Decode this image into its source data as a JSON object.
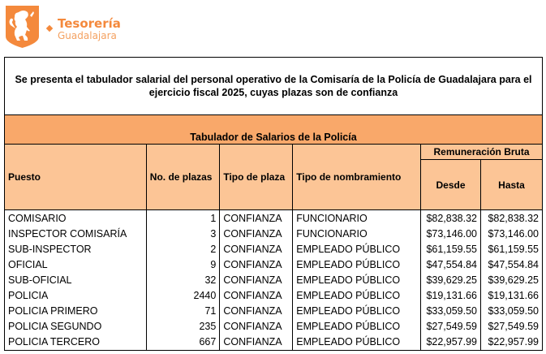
{
  "header": {
    "brand_line1": "Tesorería",
    "brand_line2": "Guadalajara",
    "brand_color": "#f4893c"
  },
  "document": {
    "intro": "Se presenta el tabulador salarial del personal operativo de la Comisaría de la Policía de Guadalajara para el ejercicio fiscal 2025, cuyas plazas son de confianza",
    "table_title": "Tabulador de Salarios de la Policía",
    "columns": {
      "puesto": "Puesto",
      "plazas": "No. de plazas",
      "tipo_plaza": "Tipo de plaza",
      "nombramiento": "Tipo de nombramiento",
      "remuneracion": "Remuneración Bruta",
      "desde": "Desde",
      "hasta": "Hasta"
    },
    "rows": [
      [
        "COMISARIO",
        "1",
        "CONFIANZA",
        "FUNCIONARIO",
        "$82,838.32",
        "$82,838.32"
      ],
      [
        "INSPECTOR COMISARÍA",
        "3",
        "CONFIANZA",
        "FUNCIONARIO",
        "$73,146.00",
        "$73,146.00"
      ],
      [
        "SUB-INSPECTOR",
        "2",
        "CONFIANZA",
        "EMPLEADO PÚBLICO",
        "$61,159.55",
        "$61,159.55"
      ],
      [
        "OFICIAL",
        "9",
        "CONFIANZA",
        "EMPLEADO PÚBLICO",
        "$47,554.84",
        "$47,554.84"
      ],
      [
        "SUB-OFICIAL",
        "32",
        "CONFIANZA",
        "EMPLEADO PÚBLICO",
        "$39,629.25",
        "$39,629.25"
      ],
      [
        "POLICIA",
        "2440",
        "CONFIANZA",
        "EMPLEADO PÚBLICO",
        "$19,131.66",
        "$19,131.66"
      ],
      [
        "POLICIA PRIMERO",
        "71",
        "CONFIANZA",
        "EMPLEADO PÚBLICO",
        "$33,059.50",
        "$33,059.50"
      ],
      [
        "POLICIA SEGUNDO",
        "235",
        "CONFIANZA",
        "EMPLEADO PÚBLICO",
        "$27,549.59",
        "$27,549.59"
      ],
      [
        "POLICIA TERCERO",
        "667",
        "CONFIANZA",
        "EMPLEADO PÚBLICO",
        "$22,957.99",
        "$22,957.99"
      ]
    ]
  }
}
